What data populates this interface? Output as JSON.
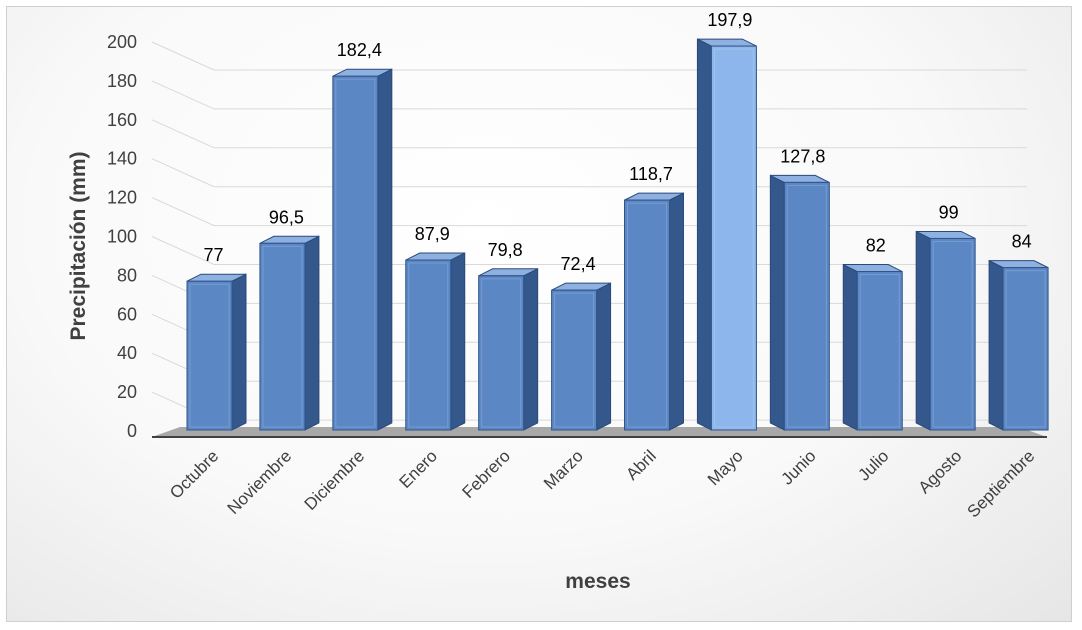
{
  "chart_data": {
    "type": "bar",
    "title": "",
    "xlabel": "meses",
    "ylabel": "Precipitación (mm)",
    "categories": [
      "Octubre",
      "Noviembre",
      "Diciembre",
      "Enero",
      "Febrero",
      "Marzo",
      "Abril",
      "Mayo",
      "Junio",
      "Julio",
      "Agosto",
      "Septiembre"
    ],
    "values": [
      77,
      96.5,
      182.4,
      87.9,
      79.8,
      72.4,
      118.7,
      197.9,
      127.8,
      82,
      99,
      84
    ],
    "data_labels": [
      "77",
      "96,5",
      "182,4",
      "87,9",
      "79,8",
      "72,4",
      "118,7",
      "197,9",
      "127,8",
      "82",
      "99",
      "84"
    ],
    "ylim": [
      0,
      200
    ],
    "yticks": [
      0,
      20,
      40,
      60,
      80,
      100,
      120,
      140,
      160,
      180,
      200
    ],
    "grid": true,
    "legend": "none",
    "style": "3d-column",
    "colors": {
      "bar_front": "#5b87c5",
      "bar_side": "#34578c",
      "bar_top": "#8eb1e2",
      "bar_highlight": "#8cb6ec",
      "floor": "#a8a8a8",
      "gridline": "#d9d9d9",
      "axis_line": "#404040"
    }
  }
}
